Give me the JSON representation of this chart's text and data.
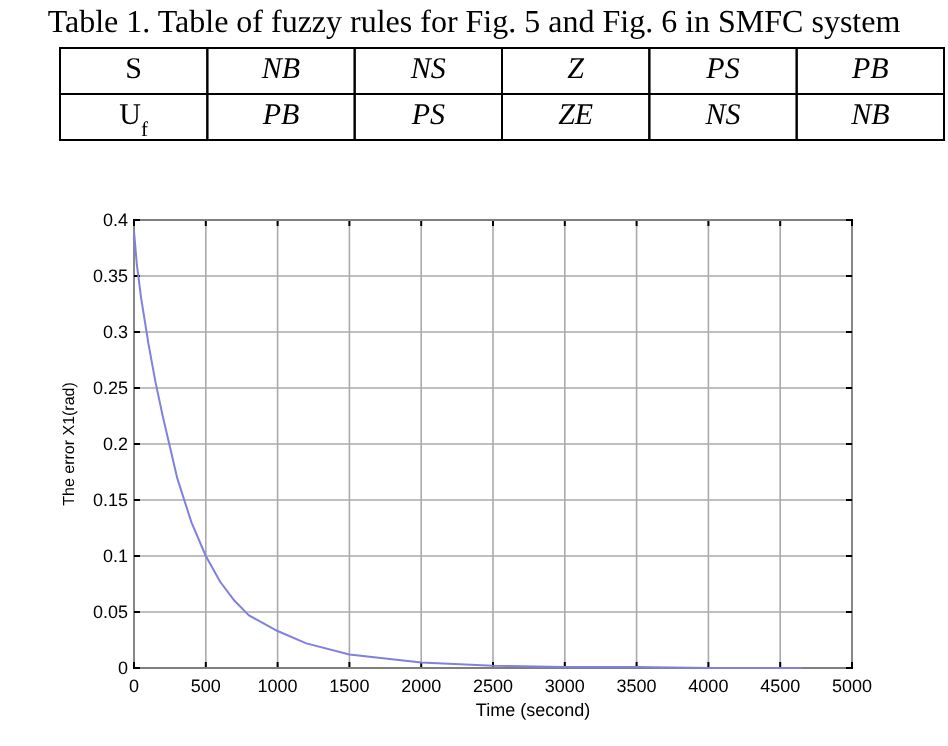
{
  "chart_data": [
    {
      "type": "other",
      "title": "Table 1. Table of fuzzy rules for Fig. 5 and Fig. 6 in SMFC system",
      "annotations": [
        "S",
        "NB",
        "NS",
        "Z",
        "PS",
        "PB",
        "U$_{f}$",
        "PB",
        "PS",
        "ZE",
        "NS",
        "NB"
      ]
    },
    {
      "type": "line",
      "xlabel": "Time (second)",
      "ylabel": "The error X1(rad)",
      "x": [
        0,
        20,
        50,
        100,
        150,
        200,
        300,
        400,
        500,
        600,
        700,
        800,
        1000,
        1200,
        1500,
        2000,
        2500,
        3000,
        3500,
        4000,
        4650
      ],
      "series": [
        {
          "color": "#8080e0",
          "values": [
            0.39,
            0.36,
            0.33,
            0.29,
            0.255,
            0.225,
            0.17,
            0.13,
            0.1,
            0.077,
            0.06,
            0.047,
            0.033,
            0.022,
            0.012,
            0.005,
            0.002,
            0.001,
            0.001,
            0,
            0
          ]
        }
      ],
      "xlim": [
        0,
        5000
      ],
      "xticks": [
        0,
        500,
        1000,
        1500,
        2000,
        2500,
        3000,
        3500,
        4000,
        4500,
        5000
      ],
      "ylim": [
        0,
        0.4
      ],
      "yticks": [
        0,
        0.05,
        0.1,
        0.15,
        0.2,
        0.25,
        0.3,
        0.35,
        0.4
      ],
      "grid": true
    }
  ]
}
